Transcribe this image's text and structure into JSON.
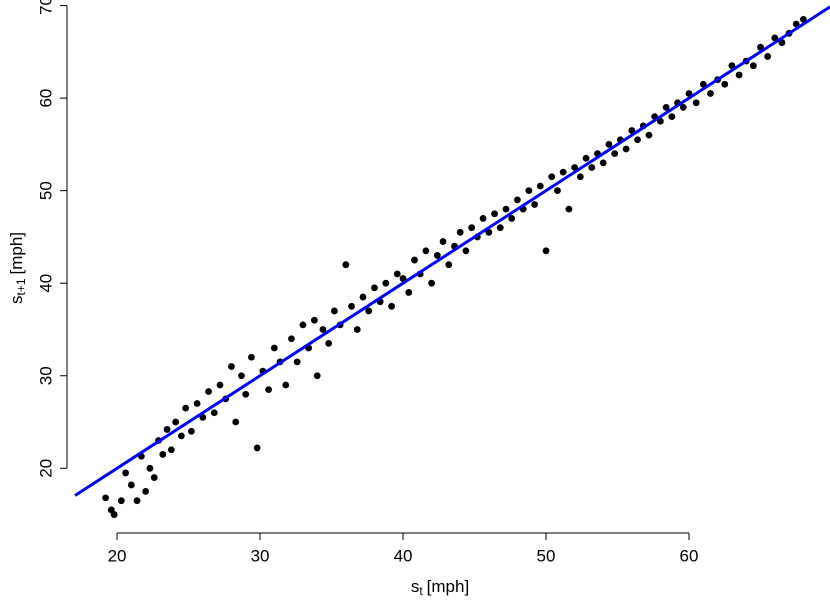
{
  "chart_data": {
    "type": "scatter",
    "xlabel": [
      "s",
      "t",
      "[mph]"
    ],
    "ylabel": [
      "s",
      "t+1",
      "[mph]"
    ],
    "color": "#000000",
    "x": [
      19.2,
      19.6,
      19.8,
      20.3,
      20.6,
      21.0,
      21.4,
      21.7,
      22.0,
      22.3,
      22.6,
      22.9,
      23.2,
      23.5,
      23.8,
      24.1,
      24.5,
      24.8,
      25.2,
      25.6,
      26.0,
      26.4,
      26.8,
      27.2,
      27.6,
      28.0,
      28.3,
      28.7,
      29.0,
      29.4,
      29.8,
      30.2,
      30.6,
      31.0,
      31.4,
      31.8,
      32.2,
      32.6,
      33.0,
      33.4,
      33.8,
      34.0,
      34.4,
      34.8,
      35.2,
      35.6,
      36.0,
      36.4,
      36.8,
      37.2,
      37.6,
      38.0,
      38.4,
      38.8,
      39.2,
      39.6,
      40.0,
      40.4,
      40.8,
      41.2,
      41.6,
      42.0,
      42.4,
      42.8,
      43.2,
      43.6,
      44.0,
      44.4,
      44.8,
      45.2,
      45.6,
      46.0,
      46.4,
      46.8,
      47.2,
      47.6,
      48.0,
      48.4,
      48.8,
      49.2,
      49.6,
      50.0,
      50.4,
      50.8,
      51.2,
      51.6,
      52.0,
      52.4,
      52.8,
      53.2,
      53.6,
      54.0,
      54.4,
      54.8,
      55.2,
      55.6,
      56.0,
      56.4,
      56.8,
      57.2,
      57.6,
      58.0,
      58.4,
      58.8,
      59.2,
      59.6,
      60.0,
      60.5,
      61.0,
      61.5,
      62.0,
      62.5,
      63.0,
      63.5,
      64.0,
      64.5,
      65.0,
      65.5,
      66.0,
      66.5,
      67.0,
      67.5,
      68.0
    ],
    "y": [
      16.8,
      15.5,
      15.0,
      16.5,
      19.5,
      18.2,
      16.5,
      21.3,
      17.5,
      20.0,
      19.0,
      23.0,
      21.5,
      24.2,
      22.0,
      25.0,
      23.5,
      26.5,
      24.0,
      27.0,
      25.5,
      28.3,
      26.0,
      29.0,
      27.5,
      31.0,
      25.0,
      30.0,
      28.0,
      32.0,
      22.2,
      30.5,
      28.5,
      33.0,
      31.5,
      29.0,
      34.0,
      31.5,
      35.5,
      33.0,
      36.0,
      30.0,
      35.0,
      33.5,
      37.0,
      35.5,
      42.0,
      37.5,
      35.0,
      38.5,
      37.0,
      39.5,
      38.0,
      40.0,
      37.5,
      41.0,
      40.5,
      39.0,
      42.5,
      41.0,
      43.5,
      40.0,
      43.0,
      44.5,
      42.0,
      44.0,
      45.5,
      43.5,
      46.0,
      45.0,
      47.0,
      45.5,
      47.5,
      46.0,
      48.0,
      47.0,
      49.0,
      48.0,
      50.0,
      48.5,
      50.5,
      43.5,
      51.5,
      50.0,
      52.0,
      48.0,
      52.5,
      51.5,
      53.5,
      52.5,
      54.0,
      53.0,
      55.0,
      54.0,
      55.5,
      54.5,
      56.5,
      55.5,
      57.0,
      56.0,
      58.0,
      57.5,
      59.0,
      58.0,
      59.5,
      59.0,
      60.5,
      59.5,
      61.5,
      60.5,
      62.0,
      61.5,
      63.5,
      62.5,
      64.0,
      63.5,
      65.5,
      64.5,
      66.5,
      66.0,
      67.0,
      68.0,
      68.5
    ],
    "fit": {
      "x": [
        17.06,
        69.86
      ],
      "y": [
        17.06,
        69.86
      ],
      "color": "#0000ff"
    },
    "xlim": [
      17.06,
      69.86
    ],
    "ylim": [
      12.9,
      70.6
    ],
    "xticks": [
      20,
      30,
      40,
      50,
      60
    ],
    "yticks": [
      20,
      30,
      40,
      50,
      60,
      70
    ],
    "grid": false
  }
}
